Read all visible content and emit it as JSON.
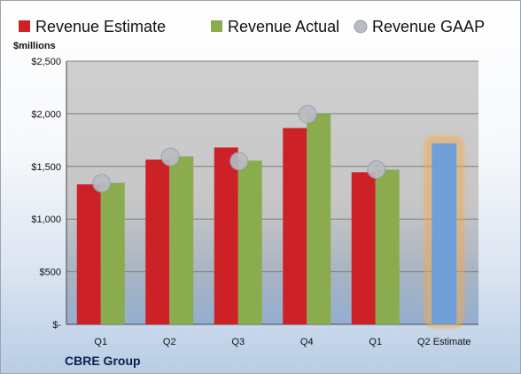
{
  "chart_data": {
    "type": "bar",
    "unit_label": "$millions",
    "company": "CBRE Group",
    "categories": [
      "Q1",
      "Q2",
      "Q3",
      "Q4",
      "Q1",
      "Q2 Estimate"
    ],
    "y_ticks": [
      "$-",
      "$500",
      "$1,000",
      "$1,500",
      "$2,000",
      "$2,500"
    ],
    "ylim": [
      0,
      2500
    ],
    "grid": true,
    "legend_position": "top",
    "series": [
      {
        "name": "Revenue Estimate",
        "type": "bar",
        "color": "#cc2127",
        "values": [
          1330,
          1565,
          1680,
          1865,
          1445,
          null
        ]
      },
      {
        "name": "Revenue Actual",
        "type": "bar",
        "color": "#8aab4e",
        "values": [
          1345,
          1595,
          1555,
          2000,
          1470,
          null
        ]
      },
      {
        "name": "Revenue GAAP",
        "type": "marker",
        "color": "#b9bcc4",
        "values": [
          1340,
          1590,
          1550,
          1995,
          1470,
          null
        ]
      },
      {
        "name": "Q2 Estimate",
        "type": "bar",
        "color": "#6f9fd6",
        "highlight": "#f5a94a",
        "values": [
          null,
          null,
          null,
          null,
          null,
          1720
        ]
      }
    ]
  }
}
